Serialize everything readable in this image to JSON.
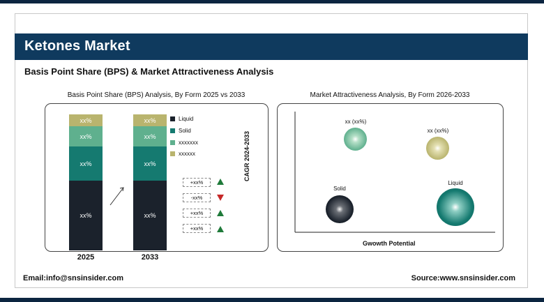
{
  "title": "Ketones Market",
  "subtitle": "Basis Point Share (BPS) & Market Attractiveness Analysis",
  "left_panel_title": "Basis Point Share (BPS) Analysis, By Form 2025 vs 2033",
  "right_panel_title": "Market Attractiveness Analysis, By Form 2026-2033",
  "colors": {
    "liquid": "#1b222c",
    "solid": "#157a70",
    "light_green": "#5fb08e",
    "olive": "#b9b46e",
    "header": "#0f3a5e",
    "up": "#1f7a3a",
    "down": "#c62828"
  },
  "chart_data": [
    {
      "type": "bar",
      "stacked": true,
      "categories": [
        "2025",
        "2033"
      ],
      "series": [
        {
          "name": "Liquid",
          "values": [
            0.5,
            0.5
          ],
          "label": "xx%"
        },
        {
          "name": "Solid",
          "values": [
            0.23,
            0.23
          ],
          "label": "xx%"
        },
        {
          "name": "xxxxxxx",
          "values": [
            0.14,
            0.14
          ],
          "label": "xx%"
        },
        {
          "name": "xxxxxx",
          "values": [
            0.09,
            0.09
          ],
          "label": "xx%"
        }
      ],
      "bps_changes": [
        {
          "label": "+xx%",
          "direction": "up"
        },
        {
          "label": "-xx%",
          "direction": "down"
        },
        {
          "label": "+xx%",
          "direction": "up"
        },
        {
          "label": "+xx%",
          "direction": "up"
        }
      ]
    },
    {
      "type": "scatter",
      "ylabel": "CAGR 2024-2033",
      "xlabel": "Gwowth Potential",
      "points": [
        {
          "name": "Solid",
          "label": "Solid",
          "x": 0.12,
          "y": 0.22,
          "size": 0.8,
          "color": "#1b222c"
        },
        {
          "name": "Liquid",
          "label": "Liquid",
          "x": 0.8,
          "y": 0.22,
          "size": 1.0,
          "color": "#157a70"
        },
        {
          "name": "light_green",
          "label": "xx (xx%)",
          "x": 0.27,
          "y": 0.78,
          "size": 0.65,
          "color": "#5fb08e"
        },
        {
          "name": "olive",
          "label": "xx (xx%)",
          "x": 0.68,
          "y": 0.72,
          "size": 0.65,
          "color": "#b9b46e"
        }
      ]
    }
  ],
  "footer": {
    "email": "Email:info@snsinsider.com",
    "source": "Source:www.snsinsider.com"
  }
}
